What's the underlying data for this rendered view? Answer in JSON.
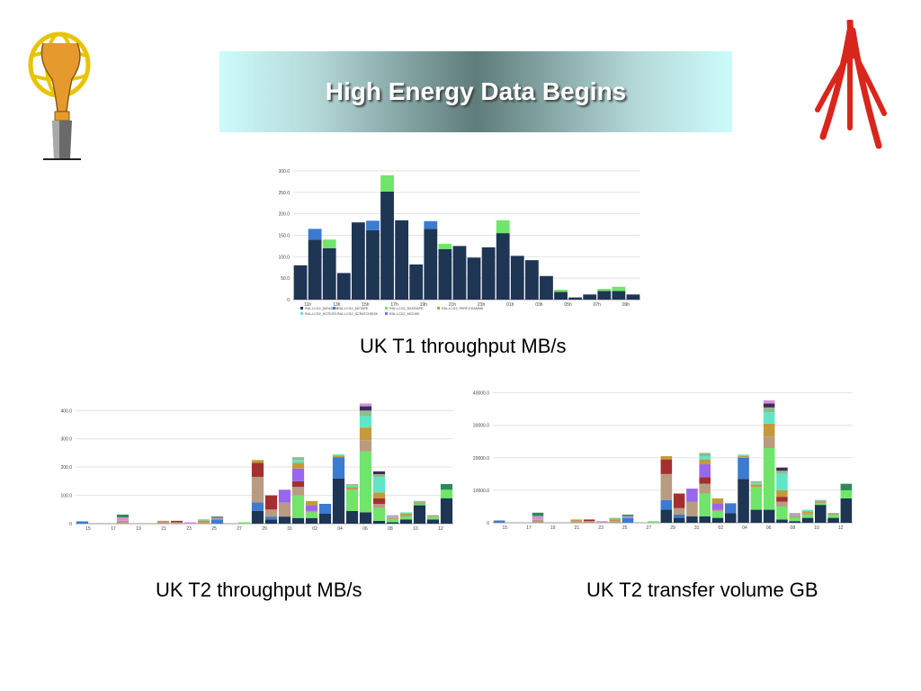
{
  "slide": {
    "title": "High Energy Data Begins"
  },
  "logos": {
    "left": "atlas-figure-logo",
    "right": "red-stylized-lines-logo"
  },
  "colors": {
    "title_text": "#ffffff",
    "dark_series": "#1e3554",
    "blue_series": "#3b7bd0",
    "green_series": "#6fe56a"
  },
  "captions": {
    "t1": "UK T1 throughput MB/s",
    "t2_throughput": "UK T2 throughput MB/s",
    "t2_volume": "UK T2 transfer volume GB"
  },
  "chart_data": [
    {
      "type": "bar",
      "stacked": true,
      "grid": true,
      "legend_position": "bottom",
      "ylim": [
        0,
        300
      ],
      "yticks": [
        "0",
        "50.0",
        "100.0",
        "150.0",
        "200.0",
        "250.0",
        "300.0"
      ],
      "xticks": [
        "11h",
        "13h",
        "15h",
        "17h",
        "19h",
        "21h",
        "23h",
        "01h",
        "03h",
        "05h",
        "07h",
        "09h"
      ],
      "legend": [
        "RAL-LCG2_DATADISK",
        "RAL-LCG2_MCTAPE",
        "RAL-LCG2_DATATAPE",
        "RAL-LCG2_PERF-EGAMMA",
        "RAL-LCG2_HOTDISK",
        "RAL-LCG2_SCRATCHDISK",
        "RAL-LCG2_MCDISK"
      ],
      "series": [
        {
          "color": "#1e3554",
          "values": [
            80,
            140,
            120,
            62,
            180,
            162,
            252,
            185,
            82,
            165,
            118,
            125,
            98,
            122,
            155,
            102,
            92,
            55,
            18,
            5,
            12,
            20,
            20,
            12
          ]
        },
        {
          "color": "#3b7bd0",
          "values": [
            0,
            25,
            0,
            0,
            0,
            22,
            0,
            0,
            0,
            18,
            0,
            0,
            0,
            0,
            0,
            0,
            0,
            0,
            0,
            0,
            0,
            0,
            0,
            0
          ]
        },
        {
          "color": "#6fe56a",
          "values": [
            0,
            0,
            20,
            0,
            0,
            0,
            38,
            0,
            0,
            0,
            12,
            0,
            0,
            0,
            30,
            0,
            0,
            0,
            5,
            0,
            0,
            5,
            10,
            0
          ]
        }
      ]
    },
    {
      "type": "bar",
      "stacked": true,
      "grid": true,
      "ylim": [
        0,
        420
      ],
      "yticks": [
        "0",
        "100.0",
        "200.0",
        "300.0",
        "400.0"
      ],
      "xticks": [
        "15",
        "17",
        "19",
        "21",
        "23",
        "25",
        "27",
        "29",
        "31",
        "02",
        "04",
        "06",
        "08",
        "10",
        "12"
      ],
      "segment_colors": [
        "#1e3554",
        "#3b7bd0",
        "#6fe56a",
        "#b89b80",
        "#a33030",
        "#9966ee",
        "#c49a3a",
        "#5fe6c8",
        "#8fbc8f",
        "#3d2b5a",
        "#d68fd6",
        "#2e8b57"
      ],
      "stacks": [
        [
          0,
          8
        ],
        [],
        [],
        [
          0,
          0,
          0,
          10,
          0,
          0,
          0,
          0,
          0,
          0,
          12,
          10
        ],
        [],
        [],
        [
          0,
          0,
          0,
          5,
          0,
          0,
          5
        ],
        [
          0,
          0,
          0,
          5,
          5
        ],
        [
          0,
          0,
          0,
          0,
          0,
          0,
          0,
          0,
          0,
          0,
          5
        ],
        [
          0,
          0,
          0,
          5,
          0,
          0,
          5,
          0,
          5
        ],
        [
          0,
          15,
          0,
          0,
          0,
          0,
          0,
          0,
          0,
          0,
          5,
          5
        ],
        [],
        [
          0,
          0,
          5
        ],
        [
          45,
          30,
          0,
          90,
          50,
          0,
          10
        ],
        [
          15,
          10,
          0,
          25,
          50
        ],
        [
          25,
          0,
          0,
          50,
          0,
          45
        ],
        [
          20,
          0,
          80,
          30,
          20,
          45,
          20,
          10,
          10
        ],
        [
          20,
          0,
          20,
          5,
          0,
          20,
          15
        ],
        [
          35,
          35
        ],
        [
          160,
          75,
          0,
          0,
          0,
          0,
          5,
          5
        ],
        [
          45,
          0,
          75,
          0,
          0,
          0,
          10,
          5,
          5
        ],
        [
          40,
          0,
          215,
          40,
          0,
          0,
          45,
          40,
          20,
          15,
          10
        ],
        [
          10,
          0,
          45,
          15,
          20,
          0,
          20,
          55,
          10,
          10
        ],
        [
          5,
          0,
          10,
          5,
          0,
          0,
          0,
          0,
          5,
          0,
          5
        ],
        [
          15,
          0,
          10,
          5,
          0,
          0,
          5,
          5,
          0,
          0,
          0,
          0
        ],
        [
          65,
          0,
          5,
          5,
          0,
          0,
          0,
          0,
          5
        ],
        [
          15,
          0,
          10,
          5
        ],
        [
          90,
          0,
          30,
          0,
          0,
          0,
          0,
          0,
          0,
          0,
          0,
          20
        ]
      ]
    },
    {
      "type": "bar",
      "stacked": true,
      "grid": true,
      "ylim": [
        0,
        41000
      ],
      "yticks": [
        "0",
        "10000.0",
        "20000.0",
        "30000.0",
        "40000.0"
      ],
      "xticks": [
        "15",
        "17",
        "19",
        "21",
        "23",
        "25",
        "27",
        "29",
        "31",
        "02",
        "04",
        "06",
        "08",
        "10",
        "12"
      ],
      "segment_colors": [
        "#1e3554",
        "#3b7bd0",
        "#6fe56a",
        "#b89b80",
        "#a33030",
        "#9966ee",
        "#c49a3a",
        "#5fe6c8",
        "#8fbc8f",
        "#3d2b5a",
        "#d68fd6",
        "#2e8b57"
      ],
      "stacks": [
        [
          0,
          700
        ],
        [],
        [],
        [
          0,
          0,
          0,
          900,
          0,
          0,
          0,
          0,
          0,
          0,
          1200,
          1000
        ],
        [],
        [],
        [
          0,
          0,
          0,
          500,
          0,
          0,
          500
        ],
        [
          0,
          0,
          0,
          500,
          500
        ],
        [
          0,
          0,
          0,
          0,
          0,
          0,
          0,
          0,
          0,
          0,
          500
        ],
        [
          0,
          0,
          0,
          500,
          0,
          0,
          500,
          0,
          500
        ],
        [
          0,
          1500,
          0,
          0,
          0,
          0,
          0,
          0,
          0,
          0,
          500,
          500
        ],
        [],
        [
          0,
          0,
          500
        ],
        [
          4000,
          3000,
          0,
          8000,
          4500,
          0,
          1000
        ],
        [
          1500,
          1000,
          0,
          2000,
          4500
        ],
        [
          2000,
          0,
          0,
          4500,
          0,
          4000
        ],
        [
          2000,
          0,
          7000,
          3000,
          2000,
          4000,
          1500,
          1000,
          1000
        ],
        [
          1500,
          0,
          2000,
          500,
          0,
          2000,
          1500
        ],
        [
          3000,
          3000
        ],
        [
          13500,
          6500,
          0,
          0,
          0,
          0,
          500,
          500
        ],
        [
          4000,
          0,
          7000,
          0,
          0,
          0,
          800,
          500,
          500
        ],
        [
          4000,
          0,
          19000,
          3500,
          0,
          0,
          4000,
          3500,
          1500,
          1200,
          1000
        ],
        [
          1000,
          0,
          4000,
          1500,
          1500,
          0,
          2000,
          5000,
          1000,
          1000
        ],
        [
          500,
          0,
          1000,
          500,
          0,
          0,
          0,
          0,
          500,
          0,
          500
        ],
        [
          1500,
          0,
          1000,
          500,
          0,
          0,
          500,
          500
        ],
        [
          5500,
          0,
          500,
          500,
          0,
          0,
          0,
          0,
          500
        ],
        [
          1500,
          0,
          1000,
          500
        ],
        [
          7500,
          0,
          2500,
          0,
          0,
          0,
          0,
          0,
          0,
          0,
          0,
          2000
        ]
      ]
    }
  ]
}
